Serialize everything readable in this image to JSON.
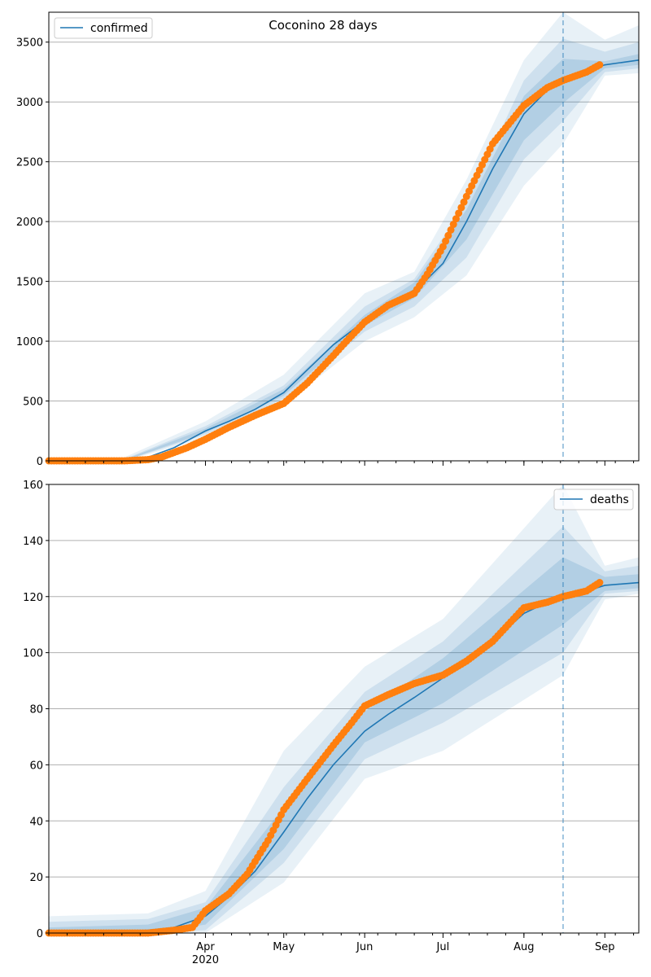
{
  "figure": {
    "title": "Coconino 28 days"
  },
  "colors": {
    "model_line": "#1f77b4",
    "observed_points": "#ff7f0e",
    "band": "#1f77b4",
    "grid": "#b0b0b0",
    "forecast_marker": "#1f77b4"
  },
  "chart_data": [
    {
      "type": "line",
      "name": "confirmed",
      "ylim": [
        0,
        3750
      ],
      "yticks": [
        0,
        500,
        1000,
        1500,
        2000,
        2500,
        3000,
        3500
      ],
      "ytick_labels": [
        "0",
        "500",
        "1000",
        "1500",
        "2000",
        "2500",
        "3000",
        "3500"
      ],
      "grid": "horizontal",
      "legend": {
        "entries": [
          "confirmed"
        ],
        "placement": "upper-left"
      },
      "forecast_start": "2020-08-16",
      "series": [
        {
          "name": "confirmed",
          "kind": "model",
          "x": [
            "2020-02-01",
            "2020-02-15",
            "2020-03-01",
            "2020-03-10",
            "2020-03-20",
            "2020-04-01",
            "2020-04-10",
            "2020-04-20",
            "2020-05-01",
            "2020-05-10",
            "2020-05-20",
            "2020-06-01",
            "2020-06-10",
            "2020-06-20",
            "2020-06-25",
            "2020-07-01",
            "2020-07-10",
            "2020-07-20",
            "2020-08-01",
            "2020-08-10",
            "2020-08-16",
            "2020-08-25",
            "2020-09-01",
            "2020-09-14"
          ],
          "y": [
            0,
            0,
            5,
            30,
            110,
            250,
            330,
            430,
            570,
            760,
            970,
            1170,
            1300,
            1430,
            1520,
            1650,
            2000,
            2440,
            2900,
            3100,
            3170,
            3260,
            3310,
            3350
          ]
        },
        {
          "name": "observed",
          "kind": "points",
          "x": [
            "2020-02-01",
            "2020-02-15",
            "2020-03-01",
            "2020-03-10",
            "2020-03-15",
            "2020-03-20",
            "2020-03-25",
            "2020-04-01",
            "2020-04-10",
            "2020-04-20",
            "2020-05-01",
            "2020-05-10",
            "2020-05-20",
            "2020-05-25",
            "2020-06-01",
            "2020-06-10",
            "2020-06-20",
            "2020-06-25",
            "2020-07-01",
            "2020-07-10",
            "2020-07-20",
            "2020-08-01",
            "2020-08-10",
            "2020-08-16",
            "2020-08-25",
            "2020-08-30"
          ],
          "y": [
            0,
            0,
            0,
            10,
            30,
            70,
            110,
            180,
            280,
            380,
            480,
            650,
            880,
            1000,
            1160,
            1300,
            1400,
            1560,
            1790,
            2210,
            2650,
            2970,
            3120,
            3180,
            3250,
            3310
          ]
        }
      ],
      "bands": [
        {
          "level": "outer",
          "x": [
            "2020-03-01",
            "2020-04-01",
            "2020-05-01",
            "2020-06-01",
            "2020-06-20",
            "2020-07-10",
            "2020-08-01",
            "2020-08-16",
            "2020-09-01",
            "2020-09-14"
          ],
          "lower": [
            0,
            190,
            470,
            1000,
            1200,
            1550,
            2300,
            2650,
            3220,
            3240
          ],
          "upper": [
            30,
            330,
            720,
            1400,
            1580,
            2350,
            3350,
            3750,
            3520,
            3640
          ]
        },
        {
          "level": "middle",
          "x": [
            "2020-03-01",
            "2020-04-01",
            "2020-05-01",
            "2020-06-01",
            "2020-06-20",
            "2020-07-10",
            "2020-08-01",
            "2020-08-16",
            "2020-09-01",
            "2020-09-14"
          ],
          "lower": [
            0,
            220,
            520,
            1080,
            1290,
            1700,
            2520,
            2840,
            3250,
            3280
          ],
          "upper": [
            15,
            290,
            630,
            1290,
            1520,
            2150,
            3180,
            3530,
            3420,
            3500
          ]
        },
        {
          "level": "inner",
          "x": [
            "2020-03-01",
            "2020-04-01",
            "2020-05-01",
            "2020-06-01",
            "2020-06-20",
            "2020-07-10",
            "2020-08-01",
            "2020-08-16",
            "2020-09-01",
            "2020-09-14"
          ],
          "lower": [
            2,
            235,
            545,
            1130,
            1360,
            1850,
            2680,
            2990,
            3280,
            3310
          ],
          "upper": [
            10,
            270,
            600,
            1220,
            1490,
            2100,
            3050,
            3360,
            3340,
            3400
          ]
        }
      ]
    },
    {
      "type": "line",
      "name": "deaths",
      "ylim": [
        0,
        160
      ],
      "yticks": [
        0,
        20,
        40,
        60,
        80,
        100,
        120,
        140,
        160
      ],
      "ytick_labels": [
        "0",
        "20",
        "40",
        "60",
        "80",
        "100",
        "120",
        "140",
        "160"
      ],
      "xticks": [
        "2020-04-01",
        "2020-05-01",
        "2020-06-01",
        "2020-07-01",
        "2020-08-01",
        "2020-09-01"
      ],
      "xtick_labels": [
        "Apr",
        "May",
        "Jun",
        "Jul",
        "Aug",
        "Sep"
      ],
      "x_year_label": "2020",
      "xlim": [
        "2020-02-01",
        "2020-09-14"
      ],
      "grid": "horizontal",
      "legend": {
        "entries": [
          "deaths"
        ],
        "placement": "upper-right"
      },
      "forecast_start": "2020-08-16",
      "series": [
        {
          "name": "deaths",
          "kind": "model",
          "x": [
            "2020-02-01",
            "2020-02-15",
            "2020-03-10",
            "2020-03-20",
            "2020-04-01",
            "2020-04-10",
            "2020-04-20",
            "2020-05-01",
            "2020-05-10",
            "2020-05-20",
            "2020-06-01",
            "2020-06-10",
            "2020-06-20",
            "2020-07-01",
            "2020-07-10",
            "2020-07-20",
            "2020-08-01",
            "2020-08-10",
            "2020-08-16",
            "2020-08-25",
            "2020-09-01",
            "2020-09-14"
          ],
          "y": [
            0,
            0,
            1,
            2,
            6,
            13,
            22,
            36,
            48,
            60,
            72,
            78,
            84,
            91,
            96,
            104,
            114,
            118,
            121,
            122,
            124,
            125
          ]
        },
        {
          "name": "observed",
          "kind": "points",
          "x": [
            "2020-02-01",
            "2020-03-10",
            "2020-03-20",
            "2020-03-27",
            "2020-04-01",
            "2020-04-10",
            "2020-04-17",
            "2020-04-25",
            "2020-05-01",
            "2020-05-10",
            "2020-05-20",
            "2020-05-27",
            "2020-06-01",
            "2020-06-10",
            "2020-06-20",
            "2020-07-01",
            "2020-07-10",
            "2020-07-20",
            "2020-08-01",
            "2020-08-10",
            "2020-08-16",
            "2020-08-25",
            "2020-08-30"
          ],
          "y": [
            0,
            0,
            1,
            2,
            8,
            14,
            21,
            33,
            44,
            55,
            67,
            75,
            81,
            85,
            89,
            92,
            97,
            104,
            116,
            118,
            120,
            122,
            125
          ]
        }
      ],
      "bands": [
        {
          "level": "outer",
          "x": [
            "2020-02-01",
            "2020-03-10",
            "2020-04-01",
            "2020-05-01",
            "2020-06-01",
            "2020-07-01",
            "2020-08-16",
            "2020-09-01",
            "2020-09-14"
          ],
          "lower": [
            0,
            0,
            0,
            18,
            55,
            65,
            92,
            119,
            121
          ],
          "upper": [
            6,
            7,
            15,
            65,
            95,
            112,
            160,
            131,
            134
          ]
        },
        {
          "level": "middle",
          "x": [
            "2020-02-01",
            "2020-03-10",
            "2020-04-01",
            "2020-05-01",
            "2020-06-01",
            "2020-07-01",
            "2020-08-16",
            "2020-09-01",
            "2020-09-14"
          ],
          "lower": [
            0,
            0,
            1,
            25,
            62,
            75,
            100,
            121,
            122
          ],
          "upper": [
            4,
            5,
            11,
            52,
            86,
            104,
            145,
            129,
            131
          ]
        },
        {
          "level": "inner",
          "x": [
            "2020-02-01",
            "2020-03-10",
            "2020-04-01",
            "2020-05-01",
            "2020-06-01",
            "2020-07-01",
            "2020-08-16",
            "2020-09-01",
            "2020-09-14"
          ],
          "lower": [
            0,
            0,
            3,
            30,
            68,
            82,
            110,
            122,
            123
          ],
          "upper": [
            2,
            3,
            9,
            45,
            79,
            98,
            134,
            127,
            128
          ]
        }
      ]
    }
  ]
}
